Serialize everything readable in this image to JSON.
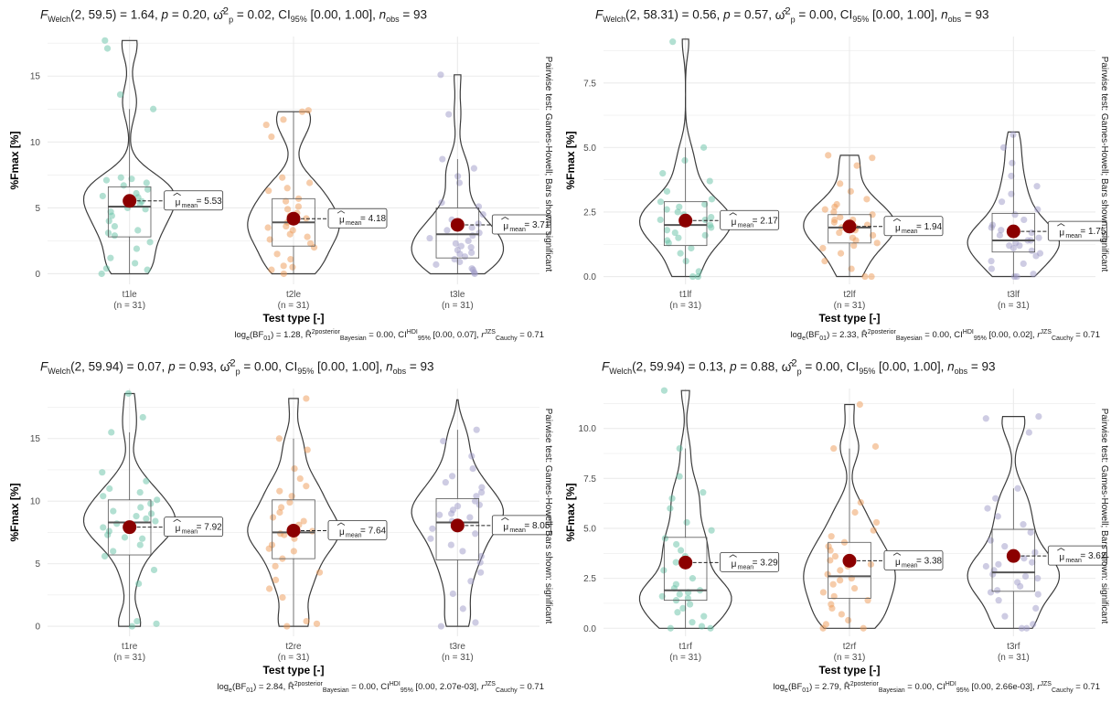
{
  "chart_data": [
    {
      "type": "violin",
      "title": "F_Welch(2, 59.5) = 1.64, p = 0.20, ω̂²_p = 0.02, CI95% [0.00, 1.00], n_obs = 93",
      "title_parts": {
        "df": "(2, 59.5) = 1.64",
        "p": " = 0.20",
        "omega": " = 0.02",
        "ci": " [0.00, 1.00]",
        "n": " = 93"
      },
      "footnote": "loge(BF01) = 1.28, R̂²posterior Bayesian = 0.00, CIHDI95% [0.00, 0.07], rJZS Cauchy = 0.71",
      "footnote_parts": {
        "bf": " = 1.28",
        "r2": " = 0.00",
        "ci": " [0.00, 0.07]",
        "cauchy": " = 0.71"
      },
      "xlabel": "Test type [-]",
      "ylabel": "%Fmax [%]",
      "side_label": "Pairwise test: Games-Howell; Bars shown: significant",
      "ylim": [
        -0.8,
        18
      ],
      "yticks": [
        0,
        5,
        10,
        15
      ],
      "ytick_labels": [
        "0",
        "5",
        "10",
        "15"
      ],
      "categories": [
        "t1le",
        "t2le",
        "t3le"
      ],
      "n_labels": [
        "(n = 31)",
        "(n = 31)",
        "(n = 31)"
      ],
      "means": [
        5.53,
        4.18,
        3.71
      ],
      "mean_labels": [
        "= 5.53",
        "= 4.18",
        "= 3.71"
      ],
      "medians": [
        5.1,
        3.9,
        3.0
      ],
      "q1": [
        2.8,
        2.1,
        1.2
      ],
      "q3": [
        6.6,
        5.7,
        5.0
      ],
      "whisker_low": [
        0,
        0,
        0
      ],
      "whisker_high": [
        12.5,
        12.3,
        8.7
      ],
      "ranges": [
        [
          0,
          17.7
        ],
        [
          0,
          12.3
        ],
        [
          0,
          15.1
        ]
      ],
      "points": [
        [
          0,
          0.3,
          0.4,
          0.8,
          1.2,
          1.9,
          2.4,
          2.9,
          3.1,
          3.6,
          4.0,
          4.4,
          4.7,
          5.0,
          5.3,
          5.5,
          5.8,
          6.1,
          6.4,
          6.7,
          6.9,
          7.1,
          7.2,
          7.3,
          12.5,
          13.6,
          17.1,
          17.7,
          3.3,
          4.9,
          5.9
        ],
        [
          0,
          0.3,
          0.5,
          0.6,
          1.1,
          1.5,
          2.0,
          2.3,
          2.8,
          3.0,
          3.3,
          3.6,
          3.9,
          4.2,
          4.4,
          4.9,
          5.1,
          5.5,
          5.7,
          6.3,
          6.5,
          6.9,
          7.3,
          10.4,
          11.3,
          11.7,
          12.3,
          12.4,
          3.5,
          2.6,
          4.6
        ],
        [
          0,
          0.1,
          0.3,
          0.4,
          0.7,
          0.9,
          1.1,
          1.3,
          1.5,
          1.8,
          2.1,
          2.3,
          2.5,
          2.7,
          2.9,
          3.1,
          3.3,
          3.5,
          3.8,
          4.1,
          4.5,
          5.1,
          5.4,
          6.9,
          7.4,
          8.0,
          8.7,
          12.1,
          15.1,
          1.6,
          2.0
        ]
      ]
    },
    {
      "type": "violin",
      "title": "F_Welch(2, 58.31) = 0.56, p = 0.57, ω̂²_p = 0.00, CI95% [0.00, 1.00], n_obs = 93",
      "title_parts": {
        "df": "(2, 58.31) = 0.56",
        "p": " = 0.57",
        "omega": " = 0.00",
        "ci": " [0.00, 1.00]",
        "n": " = 93"
      },
      "footnote": "loge(BF01) = 2.33, R̂²posterior Bayesian = 0.00, CIHDI95% [0.00, 0.02], rJZS Cauchy = 0.71",
      "footnote_parts": {
        "bf": " = 2.33",
        "r2": " = 0.00",
        "ci": " [0.00, 0.02]",
        "cauchy": " = 0.71"
      },
      "xlabel": "Test type [-]",
      "ylabel": "%Fmax [%]",
      "side_label": "Pairwise test: Games-Howell; Bars shown: significant",
      "ylim": [
        -0.3,
        9.3
      ],
      "yticks": [
        0,
        2.5,
        5,
        7.5
      ],
      "ytick_labels": [
        "0.0",
        "2.5",
        "5.0",
        "7.5"
      ],
      "categories": [
        "t1lf",
        "t2lf",
        "t3lf"
      ],
      "n_labels": [
        "(n = 31)",
        "(n = 31)",
        "(n = 31)"
      ],
      "means": [
        2.17,
        1.94,
        1.75
      ],
      "mean_labels": [
        "= 2.17",
        "= 1.94",
        "= 1.75"
      ],
      "medians": [
        2.0,
        1.9,
        1.4
      ],
      "q1": [
        1.2,
        1.3,
        0.95
      ],
      "q3": [
        2.9,
        2.4,
        2.45
      ],
      "whisker_low": [
        0,
        0,
        0
      ],
      "whisker_high": [
        5.0,
        4.7,
        5.5
      ],
      "ranges": [
        [
          0,
          9.2
        ],
        [
          0,
          4.7
        ],
        [
          0,
          5.6
        ]
      ],
      "points": [
        [
          0,
          0,
          0.2,
          0.6,
          0.9,
          1.1,
          1.3,
          1.5,
          1.6,
          1.8,
          1.9,
          2.0,
          2.1,
          2.2,
          2.3,
          2.4,
          2.5,
          2.6,
          2.7,
          2.8,
          2.9,
          3.0,
          3.3,
          3.7,
          4.0,
          4.5,
          5.0,
          9.1,
          1.4,
          2.2,
          1.7
        ],
        [
          0,
          0,
          0.3,
          0.6,
          0.9,
          1.1,
          1.2,
          1.3,
          1.4,
          1.5,
          1.6,
          1.7,
          1.8,
          1.9,
          2.0,
          2.1,
          2.2,
          2.3,
          2.4,
          2.5,
          2.6,
          2.7,
          2.8,
          3.0,
          3.3,
          3.6,
          4.3,
          4.6,
          4.7,
          1.9,
          2.2
        ],
        [
          0,
          0,
          0.1,
          0.3,
          0.5,
          0.6,
          0.8,
          0.9,
          1.0,
          1.1,
          1.2,
          1.3,
          1.4,
          1.5,
          1.6,
          1.7,
          1.8,
          1.9,
          2.0,
          2.2,
          2.4,
          2.6,
          2.9,
          3.2,
          3.5,
          3.9,
          4.4,
          5.0,
          5.5,
          1.4,
          1.2
        ]
      ]
    },
    {
      "type": "violin",
      "title": "F_Welch(2, 59.94) = 0.07, p = 0.93, ω̂²_p = 0.00, CI95% [0.00, 1.00], n_obs = 93",
      "title_parts": {
        "df": "(2, 59.94) = 0.07",
        "p": " = 0.93",
        "omega": " = 0.00",
        "ci": " [0.00, 1.00]",
        "n": " = 93"
      },
      "footnote": "loge(BF01) = 2.84, R̂²posterior Bayesian = 0.00, CIHDI95% [0.00, 2.07e-03], rJZS Cauchy = 0.71",
      "footnote_parts": {
        "bf": " = 2.84",
        "r2": " = 0.00",
        "ci": " [0.00, 2.07e-03]",
        "cauchy": " = 0.71"
      },
      "xlabel": "Test type [-]",
      "ylabel": "%Fmax [%]",
      "side_label": "Pairwise test: Games-Howell; Bars shown: significant",
      "ylim": [
        -0.8,
        19
      ],
      "yticks": [
        0,
        5,
        10,
        15
      ],
      "ytick_labels": [
        "0",
        "5",
        "10",
        "15"
      ],
      "categories": [
        "t1re",
        "t2re",
        "t3re"
      ],
      "n_labels": [
        "(n = 31)",
        "(n = 31)",
        "(n = 31)"
      ],
      "means": [
        7.92,
        7.64,
        8.05
      ],
      "mean_labels": [
        "= 7.92",
        "= 7.64",
        "= 8.05"
      ],
      "medians": [
        8.3,
        7.5,
        8.3
      ],
      "q1": [
        5.7,
        5.4,
        5.3
      ],
      "q3": [
        10.1,
        10.1,
        10.2
      ],
      "whisker_low": [
        0,
        0,
        0
      ],
      "whisker_high": [
        15.5,
        15.0,
        15.7
      ],
      "ranges": [
        [
          0,
          18.6
        ],
        [
          0,
          18.2
        ],
        [
          0,
          18.1
        ]
      ],
      "points": [
        [
          0,
          0.2,
          0.4,
          3.4,
          4.5,
          5.6,
          6.0,
          6.5,
          7.0,
          7.3,
          7.6,
          7.9,
          8.2,
          8.4,
          8.6,
          8.8,
          9.0,
          9.2,
          9.5,
          9.8,
          10.1,
          10.4,
          10.7,
          11.0,
          11.6,
          12.3,
          15.5,
          16.7,
          18.6,
          8.1,
          7.1
        ],
        [
          0,
          0.2,
          0.4,
          2.3,
          3.0,
          3.7,
          4.3,
          4.8,
          5.4,
          6.0,
          6.5,
          7.0,
          7.3,
          7.6,
          7.8,
          8.1,
          8.4,
          8.7,
          9.1,
          9.5,
          9.9,
          10.4,
          10.8,
          11.2,
          11.8,
          12.6,
          14.1,
          15.0,
          18.2,
          7.4,
          6.2
        ],
        [
          0,
          0.3,
          1.4,
          2.6,
          3.6,
          4.3,
          5.1,
          5.6,
          6.0,
          6.5,
          7.0,
          7.4,
          7.8,
          8.1,
          8.4,
          8.7,
          9.0,
          9.3,
          9.6,
          10.0,
          10.4,
          10.7,
          11.1,
          11.5,
          12.0,
          12.6,
          13.6,
          14.8,
          15.7,
          8.9,
          9.7
        ]
      ]
    },
    {
      "type": "violin",
      "title": "F_Welch(2, 59.94) = 0.13, p = 0.88, ω̂²_p = 0.00, CI95% [0.00, 1.00], n_obs = 93",
      "title_parts": {
        "df": "(2, 59.94) = 0.13",
        "p": " = 0.88",
        "omega": " = 0.00",
        "ci": " [0.00, 1.00]",
        "n": " = 93"
      },
      "footnote": "loge(BF01) = 2.79, R̂²posterior Bayesian = 0.00, CIHDI95% [0.00, 2.66e-03], rJZS Cauchy = 0.71",
      "footnote_parts": {
        "bf": " = 2.79",
        "r2": " = 0.00",
        "ci": " [0.00, 2.66e-03]",
        "cauchy": " = 0.71"
      },
      "xlabel": "Test type [-]",
      "ylabel": "%Fmax [%]",
      "side_label": "Pairwise test: Games-Howell; Bars shown: significant",
      "ylim": [
        -0.4,
        12
      ],
      "yticks": [
        0,
        2.5,
        5,
        7.5,
        10
      ],
      "ytick_labels": [
        "0.0",
        "2.5",
        "5.0",
        "7.5",
        "10.0"
      ],
      "categories": [
        "t1rf",
        "t2rf",
        "t3rf"
      ],
      "n_labels": [
        "(n = 31)",
        "(n = 31)",
        "(n = 31)"
      ],
      "means": [
        3.29,
        3.38,
        3.62
      ],
      "mean_labels": [
        "= 3.29",
        "= 3.38",
        "= 3.62"
      ],
      "medians": [
        1.9,
        2.6,
        2.8
      ],
      "q1": [
        1.4,
        1.5,
        1.85
      ],
      "q3": [
        4.55,
        4.3,
        4.95
      ],
      "whisker_low": [
        0,
        0,
        0
      ],
      "whisker_high": [
        9.0,
        9.0,
        7.0
      ],
      "ranges": [
        [
          0,
          11.9
        ],
        [
          0,
          11.2
        ],
        [
          0,
          10.6
        ]
      ],
      "points": [
        [
          0,
          0,
          0.1,
          0.3,
          0.6,
          0.8,
          1.0,
          1.2,
          1.4,
          1.5,
          1.6,
          1.8,
          1.9,
          2.0,
          2.2,
          2.5,
          2.9,
          3.3,
          3.6,
          3.9,
          4.2,
          4.5,
          4.9,
          5.3,
          6.0,
          6.5,
          6.8,
          7.6,
          9.0,
          11.9,
          1.7
        ],
        [
          0,
          0,
          0.2,
          0.4,
          0.7,
          1.0,
          1.2,
          1.4,
          1.6,
          1.8,
          2.0,
          2.2,
          2.5,
          2.7,
          2.9,
          3.2,
          3.4,
          3.6,
          3.9,
          4.1,
          4.3,
          4.6,
          4.9,
          5.3,
          5.8,
          6.3,
          9.0,
          9.1,
          11.2,
          2.4,
          3.1
        ],
        [
          0,
          0,
          0.2,
          0.6,
          1.0,
          1.4,
          1.7,
          1.9,
          2.1,
          2.3,
          2.5,
          2.7,
          2.9,
          3.1,
          3.3,
          3.5,
          3.8,
          4.1,
          4.4,
          4.8,
          5.2,
          5.6,
          6.0,
          6.5,
          7.0,
          9.8,
          10.5,
          10.6,
          2.6,
          3.2,
          1.8
        ]
      ]
    }
  ],
  "colors": {
    "group_colors": [
      "#66c2a5",
      "#ee9a55",
      "#9e9ac8"
    ],
    "mean_point": "#8b0000",
    "grid": "#ebebeb",
    "violin_stroke": "#3c3c3c"
  }
}
